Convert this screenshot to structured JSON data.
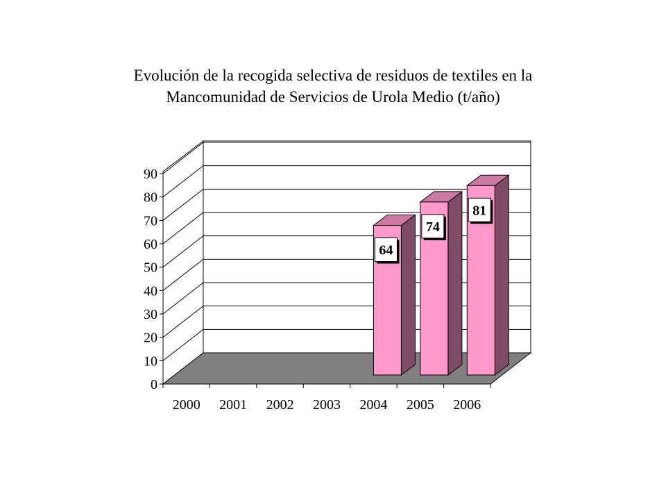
{
  "chart_data": {
    "type": "bar",
    "title_lines": [
      "Evolución de la recogida selectiva de residuos de textiles en la",
      "Mancomunidad de Servicios de Urola Medio (t/año)"
    ],
    "categories": [
      "2000",
      "2001",
      "2002",
      "2003",
      "2004",
      "2005",
      "2006"
    ],
    "values": [
      null,
      null,
      null,
      null,
      64,
      74,
      81
    ],
    "data_labels": [
      "",
      "",
      "",
      "",
      "64",
      "74",
      "81"
    ],
    "y_ticks": [
      "0",
      "10",
      "20",
      "30",
      "40",
      "50",
      "60",
      "70",
      "80",
      "90"
    ],
    "ylim": [
      0,
      90
    ],
    "grid": true,
    "legend": "none",
    "style": "3d-column",
    "colors": {
      "bar_front": "#ff99cc",
      "bar_top": "#cc7aa4",
      "bar_side": "#7f4c66",
      "floor": "#808080",
      "wall_stroke": "#000000"
    }
  }
}
